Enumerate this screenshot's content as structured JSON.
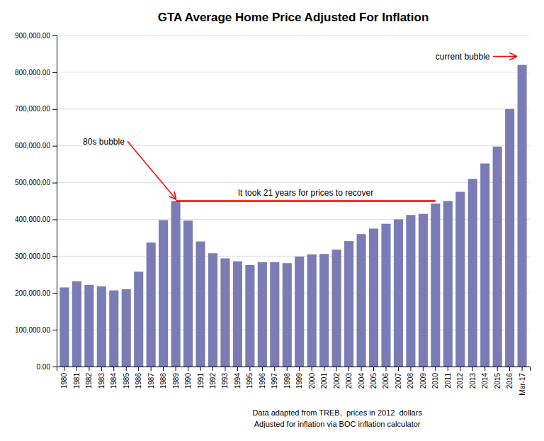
{
  "chart_data": {
    "type": "bar",
    "title": "GTA Average Home Price Adjusted For Inflation",
    "categories": [
      "1980",
      "1981",
      "1982",
      "1983",
      "1984",
      "1985",
      "1986",
      "1987",
      "1988",
      "1989",
      "1990",
      "1991",
      "1992",
      "1993",
      "1994",
      "1995",
      "1996",
      "1997",
      "1998",
      "1999",
      "2000",
      "2001",
      "2002",
      "2003",
      "2004",
      "2005",
      "2006",
      "2007",
      "2008",
      "2009",
      "2010",
      "2011",
      "2012",
      "2013",
      "2014",
      "2015",
      "2016",
      "Mar-17"
    ],
    "values": [
      215000,
      232000,
      222000,
      218000,
      207000,
      210000,
      258000,
      337000,
      398000,
      450000,
      397000,
      340000,
      308000,
      294000,
      286000,
      276000,
      284000,
      284000,
      281000,
      299000,
      305000,
      306000,
      318000,
      341000,
      360000,
      375000,
      388000,
      400000,
      412000,
      415000,
      443000,
      450000,
      475000,
      510000,
      552000,
      598000,
      700000,
      820000
    ],
    "color": "#7B7BB5",
    "ylim": [
      0,
      900000
    ],
    "yticks": [
      {
        "value": 0,
        "label": "0.00"
      },
      {
        "value": 100000,
        "label": "100,000.00"
      },
      {
        "value": 200000,
        "label": "200,000.00"
      },
      {
        "value": 300000,
        "label": "300,000.00"
      },
      {
        "value": 400000,
        "label": "400,000.00"
      },
      {
        "value": 500000,
        "label": "500,000.00"
      },
      {
        "value": 600000,
        "label": "600,000.00"
      },
      {
        "value": 700000,
        "label": "700,000.00"
      },
      {
        "value": 800000,
        "label": "800,000.00"
      },
      {
        "value": 900000,
        "label": "900,000.00"
      }
    ],
    "grid": true,
    "annotations": [
      {
        "text": "80s bubble",
        "category": "1989",
        "color": "red"
      },
      {
        "text": "current bubble",
        "category": "Mar-17",
        "color": "red"
      },
      {
        "text": "It took 21 years for prices to recover",
        "from": "1989",
        "to": "2010",
        "y": 450000,
        "color": "red"
      }
    ],
    "footer": [
      "Data adapted from TREB,  prices in 2012  dollars",
      "Adjusted for inflation via BOC inflation calculator"
    ]
  }
}
